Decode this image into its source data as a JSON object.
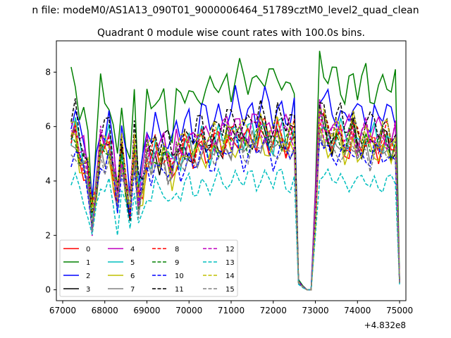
{
  "chart_data": {
    "type": "line",
    "suptitle": "n file: modeM0/AS1A13_090T01_9000006464_51789cztM0_level2_quad_clean",
    "title": "Quadrant 0 module wise count rates with 100.0s bins.",
    "xlabel": "",
    "ylabel": "",
    "x_offset_label": "+4.832e8",
    "xlim": [
      66850,
      75150
    ],
    "ylim": [
      -0.4,
      9.15
    ],
    "xticks": [
      67000,
      68000,
      69000,
      70000,
      71000,
      72000,
      73000,
      74000,
      75000
    ],
    "xtick_labels": [
      "67000",
      "68000",
      "69000",
      "70000",
      "71000",
      "72000",
      "73000",
      "74000",
      "75000"
    ],
    "yticks": [
      0,
      2,
      4,
      6,
      8
    ],
    "ytick_labels": [
      "0",
      "2",
      "4",
      "6",
      "8"
    ],
    "grid": false,
    "legend_position": "lower-left",
    "x_start": 67200,
    "x_step": 100,
    "shape_profile": [
      1.0,
      1.05,
      0.9,
      0.85,
      0.75,
      0.45,
      0.7,
      0.95,
      0.93,
      0.98,
      0.8,
      0.6,
      0.9,
      0.7,
      0.55,
      0.95,
      0.6,
      0.7,
      0.9,
      0.85,
      0.93,
      0.88,
      0.92,
      0.85,
      0.8,
      0.92,
      0.88,
      0.93,
      0.97,
      0.9,
      0.95,
      1.0,
      0.96,
      0.93,
      0.97,
      1.0,
      0.97,
      1.03,
      1.0,
      1.05,
      1.02,
      0.98,
      1.0,
      1.04,
      1.0,
      1.06,
      1.05,
      1.0,
      0.97,
      1.05,
      1.03,
      0.98,
      1.0,
      1.02,
      0.05,
      0.02,
      0.0,
      0.0,
      0.5,
      1.12,
      1.07,
      1.02,
      0.98,
      1.02,
      1.03,
      0.96,
      0.99,
      1.04,
      0.96,
      0.98,
      1.01,
      0.96,
      1.0,
      0.97,
      0.99,
      1.0,
      0.95,
      0.98,
      0.05
    ],
    "series": [
      {
        "name": "0",
        "color": "#ff0000",
        "dashed": false,
        "base": 5.4
      },
      {
        "name": "1",
        "color": "#008000",
        "dashed": false,
        "base": 7.6
      },
      {
        "name": "2",
        "color": "#0000ff",
        "dashed": false,
        "base": 6.5
      },
      {
        "name": "3",
        "color": "#000000",
        "dashed": false,
        "base": 5.5
      },
      {
        "name": "4",
        "color": "#bf00bf",
        "dashed": false,
        "base": 5.9
      },
      {
        "name": "5",
        "color": "#00bfbf",
        "dashed": false,
        "base": 5.6
      },
      {
        "name": "6",
        "color": "#bfbf00",
        "dashed": false,
        "base": 5.2
      },
      {
        "name": "7",
        "color": "#808080",
        "dashed": false,
        "base": 5.3
      },
      {
        "name": "8",
        "color": "#ff0000",
        "dashed": true,
        "base": 5.6
      },
      {
        "name": "9",
        "color": "#008000",
        "dashed": true,
        "base": 5.5
      },
      {
        "name": "10",
        "color": "#0000ff",
        "dashed": true,
        "base": 5.0
      },
      {
        "name": "11",
        "color": "#000000",
        "dashed": true,
        "base": 6.1
      },
      {
        "name": "12",
        "color": "#bf00bf",
        "dashed": true,
        "base": 5.7
      },
      {
        "name": "13",
        "color": "#00bfbf",
        "dashed": true,
        "base": 4.0
      },
      {
        "name": "14",
        "color": "#bfbf00",
        "dashed": true,
        "base": 5.8
      },
      {
        "name": "15",
        "color": "#808080",
        "dashed": true,
        "base": 5.1
      }
    ]
  }
}
